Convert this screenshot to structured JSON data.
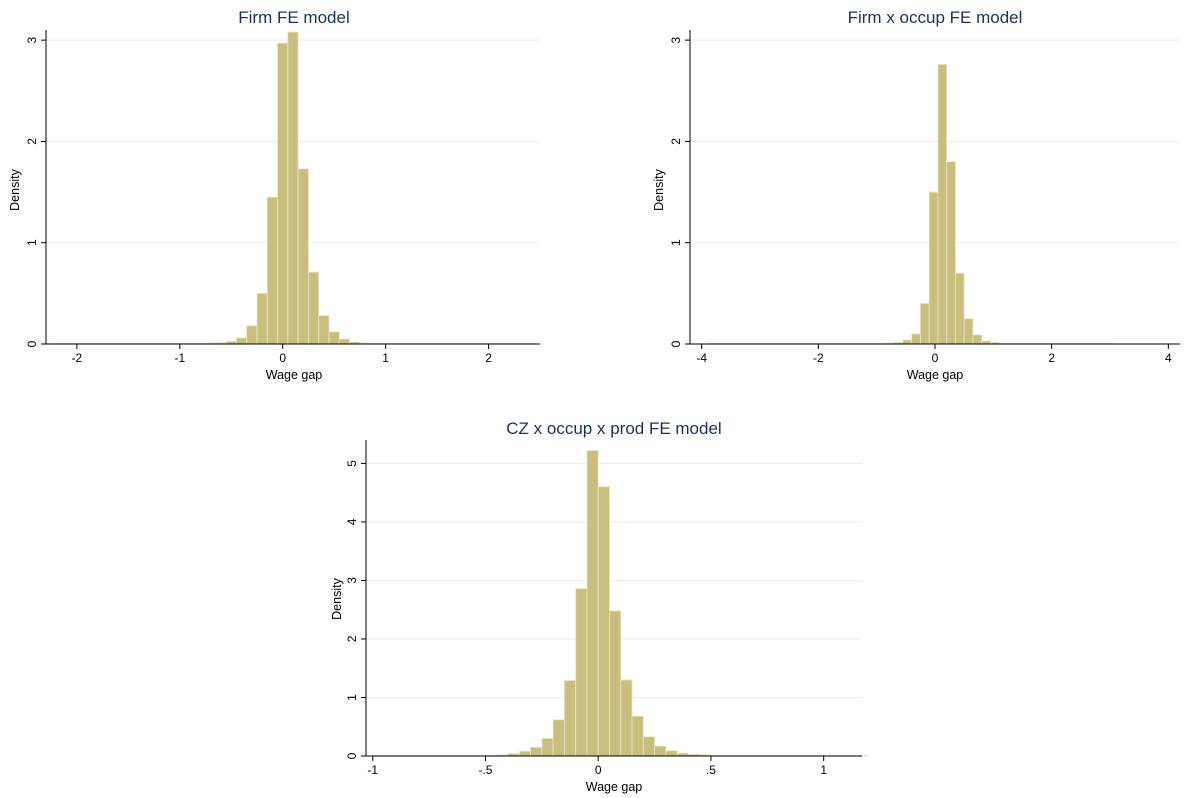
{
  "chart_data": [
    {
      "type": "bar",
      "title": "Firm FE model",
      "xlabel": "Wage gap",
      "ylabel": "Density",
      "xlim": [
        -2.3,
        2.5
      ],
      "ylim": [
        0,
        3.1
      ],
      "xticks": [
        -2,
        -1,
        0,
        1,
        2
      ],
      "xtick_labels": [
        "-2",
        "-1",
        "0",
        "1",
        "2"
      ],
      "yticks": [
        0,
        1,
        2,
        3
      ],
      "ytick_labels": [
        "0",
        "1",
        "2",
        "3"
      ],
      "grid": true,
      "bin_start": -2.25,
      "bin_width": 0.1,
      "values": [
        0.004,
        0.002,
        0.003,
        0.002,
        0.001,
        0.001,
        0.002,
        0.001,
        0.001,
        0.001,
        0.001,
        0.002,
        0.003,
        0.004,
        0.006,
        0.01,
        0.012,
        0.025,
        0.06,
        0.18,
        0.5,
        1.45,
        2.97,
        3.08,
        1.73,
        0.71,
        0.28,
        0.12,
        0.05,
        0.02,
        0.01,
        0.006,
        0.004,
        0.003,
        0.002,
        0.002,
        0.001,
        0.001,
        0.002,
        0.001,
        0.001,
        0.001,
        0.002,
        0.001,
        0.001,
        0.001,
        0.001
      ]
    },
    {
      "type": "bar",
      "title": "Firm x occup FE model",
      "xlabel": "Wage gap",
      "ylabel": "Density",
      "xlim": [
        -4.2,
        4.2
      ],
      "ylim": [
        0,
        3.1
      ],
      "xticks": [
        -4,
        -2,
        0,
        2,
        4
      ],
      "xtick_labels": [
        "-4",
        "-2",
        "0",
        "2",
        "4"
      ],
      "yticks": [
        0,
        1,
        2,
        3
      ],
      "ytick_labels": [
        "0",
        "1",
        "2",
        "3"
      ],
      "grid": true,
      "bin_start": -3.85,
      "bin_width": 0.15,
      "values": [
        0.003,
        0.001,
        0.001,
        0.001,
        0.001,
        0.001,
        0.001,
        0.001,
        0.001,
        0.001,
        0.001,
        0.003,
        0.002,
        0.002,
        0.002,
        0.002,
        0.003,
        0.003,
        0.005,
        0.007,
        0.01,
        0.015,
        0.04,
        0.1,
        0.4,
        1.5,
        2.76,
        1.8,
        0.7,
        0.25,
        0.09,
        0.03,
        0.015,
        0.008,
        0.005,
        0.003,
        0.002,
        0.002,
        0.002,
        0.002,
        0.001,
        0.001,
        0.001,
        0.002,
        0.001,
        0.002
      ]
    },
    {
      "type": "bar",
      "title": "CZ x occup x prod FE model",
      "xlabel": "Wage gap",
      "ylabel": "Density",
      "xlim": [
        -1.03,
        1.17
      ],
      "ylim": [
        0,
        5.4
      ],
      "xticks": [
        -1,
        -0.5,
        0,
        0.5,
        1
      ],
      "xtick_labels": [
        "-1",
        "-.5",
        "0",
        ".5",
        "1"
      ],
      "yticks": [
        0,
        1,
        2,
        3,
        4,
        5
      ],
      "ytick_labels": [
        "0",
        "1",
        "2",
        "3",
        "4",
        "5"
      ],
      "grid": true,
      "bin_start": -1.0,
      "bin_width": 0.05,
      "values": [
        0.005,
        0.004,
        0.003,
        0.003,
        0.002,
        0.002,
        0.002,
        0.003,
        0.004,
        0.006,
        0.01,
        0.02,
        0.04,
        0.08,
        0.15,
        0.3,
        0.62,
        1.29,
        2.86,
        5.22,
        4.6,
        2.48,
        1.3,
        0.68,
        0.33,
        0.17,
        0.09,
        0.05,
        0.03,
        0.02,
        0.01,
        0.008,
        0.006,
        0.005,
        0.004,
        0.003,
        0.003,
        0.002,
        0.002,
        0.002,
        0.002,
        0.002,
        0.002,
        0.002
      ]
    }
  ]
}
